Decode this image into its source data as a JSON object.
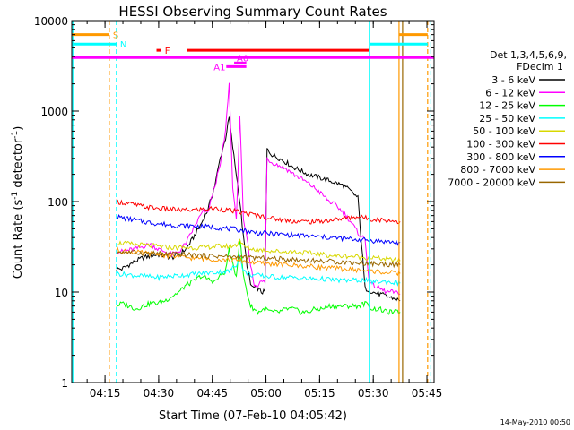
{
  "chart_data": {
    "type": "line",
    "title": "HESSI Observing Summary Count Rates",
    "xlabel": "Start Time (07-Feb-10 04:05:42)",
    "ylabel_main": "Count Rate (s",
    "ylabel_sup1": "-1",
    "ylabel_mid": " detector",
    "ylabel_sup2": "-1",
    "ylabel_end": ")",
    "x_unit": "minutes after 04:05:42",
    "xlim": [
      0,
      101.3
    ],
    "x_ticks": [
      {
        "label": "04:15",
        "value": 9.3
      },
      {
        "label": "04:30",
        "value": 24.3
      },
      {
        "label": "04:45",
        "value": 39.3
      },
      {
        "label": "05:00",
        "value": 54.3
      },
      {
        "label": "05:15",
        "value": 69.3
      },
      {
        "label": "05:30",
        "value": 84.3
      },
      {
        "label": "05:45",
        "value": 99.3
      }
    ],
    "y_scale": "log",
    "ylim": [
      1,
      10000
    ],
    "y_ticks": [
      {
        "label": "1",
        "value": 1
      },
      {
        "label": "10",
        "value": 10
      },
      {
        "label": "100",
        "value": 100
      },
      {
        "label": "1000",
        "value": 1000
      },
      {
        "label": "10000",
        "value": 10000
      }
    ],
    "legend": {
      "heading1": "Det 1,3,4,5,6,9,",
      "heading2": "FDecim 1",
      "placement": "right",
      "entries": [
        {
          "label": "3 - 6 keV",
          "color": "#000000"
        },
        {
          "label": "6 - 12 keV",
          "color": "#ff00ff"
        },
        {
          "label": "12 - 25 keV",
          "color": "#00ff00"
        },
        {
          "label": "25 - 50 keV",
          "color": "#00ffff"
        },
        {
          "label": "50 - 100 keV",
          "color": "#d8d800"
        },
        {
          "label": "100 - 300 keV",
          "color": "#ff0000"
        },
        {
          "label": "300 - 800 keV",
          "color": "#0000ff"
        },
        {
          "label": "800 - 7000 keV",
          "color": "#ff9900"
        },
        {
          "label": "7000 - 20000 keV",
          "color": "#996600"
        }
      ]
    },
    "series": [
      {
        "name": "3 - 6 keV",
        "color": "#000000",
        "x": [
          12.5,
          14,
          16,
          18,
          20,
          22,
          24,
          26,
          28,
          30,
          32,
          34,
          36,
          38,
          40,
          41.5,
          43,
          44,
          45,
          46,
          47,
          48,
          49,
          50,
          51,
          52,
          53,
          54,
          54.6,
          55,
          56,
          58,
          60,
          62,
          64,
          66,
          68,
          70,
          72,
          74,
          76,
          78,
          80,
          82,
          83.2,
          84,
          86,
          88,
          90,
          91.8
        ],
        "y": [
          18,
          18,
          20,
          22,
          24,
          25,
          26,
          25,
          24,
          26,
          30,
          40,
          55,
          80,
          150,
          300,
          500,
          850,
          400,
          200,
          100,
          40,
          20,
          12,
          11,
          11,
          10,
          10,
          380,
          360,
          330,
          300,
          270,
          240,
          220,
          200,
          190,
          180,
          170,
          160,
          150,
          130,
          110,
          11,
          10.5,
          10,
          9.5,
          9,
          8.5,
          8
        ]
      },
      {
        "name": "6 - 12 keV",
        "color": "#ff00ff",
        "x": [
          12.5,
          14,
          16,
          18,
          20,
          22,
          24,
          26,
          28,
          30,
          32,
          34,
          36,
          37,
          38,
          40,
          41.5,
          43,
          44,
          45,
          46,
          47,
          48,
          49,
          50,
          51,
          52,
          53,
          54,
          54.6,
          55,
          56,
          58,
          60,
          62,
          64,
          66,
          68,
          70,
          72,
          74,
          76,
          78,
          80,
          82,
          83.2,
          84,
          86,
          88,
          90,
          91.8
        ],
        "y": [
          28,
          28,
          29,
          30,
          32,
          34,
          30,
          28,
          26,
          28,
          35,
          50,
          70,
          80,
          75,
          150,
          250,
          600,
          2000,
          150,
          60,
          900,
          60,
          40,
          20,
          12,
          12,
          13,
          13,
          300,
          290,
          270,
          250,
          230,
          200,
          180,
          160,
          140,
          120,
          100,
          90,
          75,
          60,
          45,
          38,
          13,
          12,
          11,
          10,
          10,
          9.5
        ]
      },
      {
        "name": "12 - 25 keV",
        "color": "#00ff00",
        "x": [
          12.5,
          14,
          16,
          18,
          20,
          22,
          24,
          26,
          28,
          30,
          32,
          34,
          36,
          38,
          40,
          41.5,
          43,
          44,
          45,
          46,
          47,
          48,
          49,
          50,
          52,
          54,
          56,
          58,
          60,
          62,
          64,
          66,
          68,
          70,
          72,
          74,
          76,
          78,
          80,
          82,
          83.2,
          84,
          86,
          88,
          90,
          91.8
        ],
        "y": [
          7,
          7.5,
          7,
          6.5,
          7,
          7.5,
          7.5,
          8,
          9,
          10,
          12,
          13,
          15,
          14,
          13,
          15,
          17,
          30,
          20,
          15,
          40,
          15,
          10,
          7,
          6,
          6.5,
          6,
          6,
          6.5,
          6.5,
          6,
          6,
          6.5,
          6.5,
          7,
          7,
          7,
          7,
          7,
          7.5,
          7,
          6.5,
          6.5,
          6,
          6,
          6
        ]
      },
      {
        "name": "25 - 50 keV",
        "color": "#00ffff",
        "x": [
          12.5,
          16,
          20,
          24,
          28,
          32,
          36,
          40,
          44,
          46,
          47,
          48,
          50,
          54,
          58,
          62,
          66,
          70,
          74,
          78,
          82,
          84,
          88,
          91.8
        ],
        "y": [
          16,
          15.5,
          15,
          14.5,
          15,
          15.5,
          16,
          16.5,
          17,
          20,
          25,
          17,
          15.5,
          15,
          14.5,
          14.5,
          14,
          14,
          13.5,
          13.5,
          13.5,
          13,
          13,
          12.5
        ]
      },
      {
        "name": "50 - 100 keV",
        "color": "#d8d800",
        "x": [
          12.5,
          16,
          20,
          24,
          28,
          32,
          36,
          40,
          44,
          46,
          47,
          48,
          50,
          54,
          58,
          62,
          66,
          70,
          74,
          78,
          82,
          84,
          88,
          91.8
        ],
        "y": [
          35,
          34,
          33,
          32,
          31,
          31,
          31,
          32,
          32,
          33,
          38,
          32,
          30,
          29,
          28,
          28,
          27,
          26,
          25,
          25,
          24,
          24,
          23,
          22
        ]
      },
      {
        "name": "100 - 300 keV",
        "color": "#ff0000",
        "x": [
          12.5,
          16,
          20,
          24,
          28,
          32,
          36,
          40,
          44,
          48,
          52,
          56,
          60,
          64,
          68,
          72,
          76,
          80,
          84,
          88,
          91.8
        ],
        "y": [
          100,
          95,
          88,
          84,
          82,
          80,
          82,
          84,
          80,
          75,
          70,
          65,
          62,
          60,
          60,
          62,
          65,
          68,
          64,
          62,
          60
        ]
      },
      {
        "name": "300 - 800 keV",
        "color": "#0000ff",
        "x": [
          12.5,
          16,
          20,
          24,
          28,
          32,
          36,
          40,
          44,
          48,
          52,
          56,
          60,
          64,
          68,
          72,
          76,
          80,
          84,
          88,
          91.8
        ],
        "y": [
          68,
          64,
          60,
          57,
          55,
          54,
          53,
          52,
          50,
          48,
          45,
          44,
          43,
          42,
          41,
          40,
          39,
          38,
          37,
          36,
          35
        ]
      },
      {
        "name": "800 - 7000 keV",
        "color": "#ff9900",
        "x": [
          12.5,
          16,
          20,
          24,
          28,
          32,
          36,
          40,
          44,
          48,
          52,
          56,
          60,
          64,
          68,
          72,
          76,
          80,
          84,
          88,
          91.8
        ],
        "y": [
          29,
          28,
          27,
          26,
          25,
          24,
          23.5,
          23,
          22.5,
          22,
          21,
          20.5,
          20,
          19.5,
          19,
          18.5,
          18,
          17.5,
          17,
          16.5,
          16
        ]
      },
      {
        "name": "7000 - 20000 keV",
        "color": "#996600",
        "x": [
          12.5,
          20,
          30,
          40,
          50,
          60,
          70,
          80,
          91.8
        ],
        "y": [
          28,
          27,
          26,
          25,
          24,
          23,
          22,
          21,
          20
        ]
      }
    ],
    "state_bars": [
      {
        "label": "S",
        "color": "#ff9900",
        "y": 7000,
        "segments": [
          [
            0,
            10.5
          ],
          [
            91.5,
            99.5
          ]
        ]
      },
      {
        "label": "N",
        "color": "#00ffff",
        "y": 5500,
        "segments": [
          [
            0,
            12.5
          ],
          [
            83.2,
            99.5
          ]
        ]
      },
      {
        "label": "F",
        "color": "#ff0000",
        "y": 4700,
        "segments": [
          [
            23.7,
            25
          ],
          [
            32.2,
            83
          ]
        ]
      },
      {
        "label": "",
        "color": "#ff00ff",
        "y": 3900,
        "segments": [
          [
            0,
            101.3
          ]
        ]
      },
      {
        "label": "A0",
        "color": "#ff00ff",
        "y": 3400,
        "segments": [
          [
            45.4,
            48.8
          ]
        ]
      },
      {
        "label": "A1",
        "color": "#ff00ff",
        "y": 3100,
        "segments": [
          [
            43.2,
            48.8
          ]
        ]
      }
    ],
    "vertical_markers": [
      {
        "x": 0.3,
        "color": "#00ffff",
        "style": "solid"
      },
      {
        "x": 10.5,
        "color": "#ff9900",
        "style": "dashed"
      },
      {
        "x": 12.5,
        "color": "#00ffff",
        "style": "dashed"
      },
      {
        "x": 83.2,
        "color": "#00ffff",
        "style": "solid"
      },
      {
        "x": 91.5,
        "color": "#ff9900",
        "style": "solid"
      },
      {
        "x": 92.5,
        "color": "#996600",
        "style": "solid"
      },
      {
        "x": 99.5,
        "color": "#ff9900",
        "style": "dashed"
      },
      {
        "x": 100.4,
        "color": "#00ffff",
        "style": "dashed"
      }
    ],
    "footer_date": "14-May-2010 00:50"
  }
}
